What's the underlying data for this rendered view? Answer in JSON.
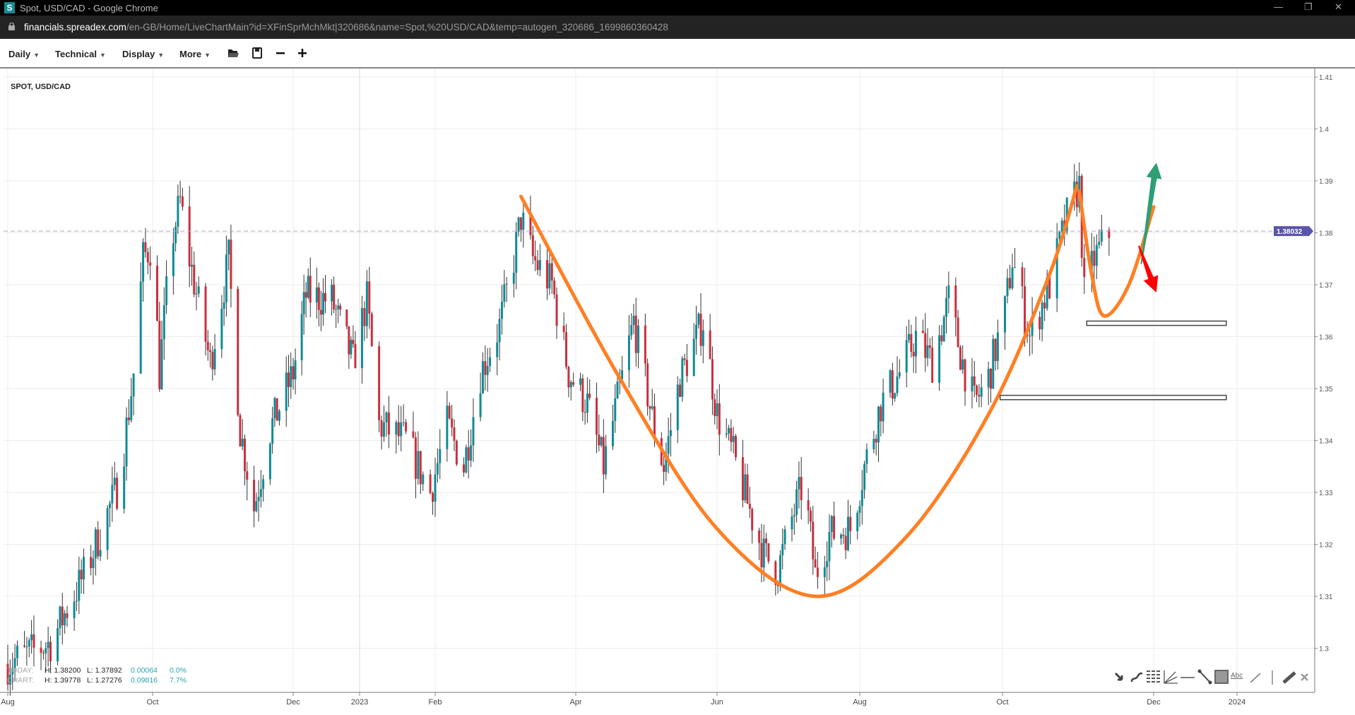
{
  "window": {
    "title": "Spot, USD/CAD - Google Chrome",
    "logo_letter": "S"
  },
  "address_bar": {
    "host": "financials.spreadex.com",
    "path": "/en-GB/Home/LiveChartMain?id=XFinSprMchMkt|320686&name=Spot,%20USD/CAD&temp=autogen_320686_1699860360428"
  },
  "toolbar": {
    "menus": [
      "Daily",
      "Technical",
      "Display",
      "More"
    ],
    "icons": [
      "open-folder-icon",
      "save-icon",
      "zoom-out-icon",
      "zoom-in-icon"
    ]
  },
  "chart_title": "SPOT, USD/CAD",
  "stats": {
    "today": {
      "label": "TODAY:",
      "high": "H: 1.38200",
      "low": "L: 1.37892",
      "change": "0.00064",
      "pct": "0.0%"
    },
    "chart": {
      "label": "CHART:",
      "high": "H: 1.39778",
      "low": "L: 1.27276",
      "change": "0.09816",
      "pct": "7.7%"
    }
  },
  "drawing_tools": [
    "arrow-icon",
    "curve-icon",
    "fibonacci-icon",
    "fan-icon",
    "horizontal-line-icon",
    "trend-line-icon",
    "rectangle-icon",
    "text-icon",
    "line-icon",
    "separator",
    "ruler-icon",
    "close-icon"
  ],
  "drawing_tools_text": "Abc",
  "colors": {
    "up": "#0f8b96",
    "down": "#c9303c",
    "annotation": "#ff7f24",
    "arrow_up": "#2e9e74",
    "arrow_down": "#ff0000",
    "price_badge": "#5b55a8"
  },
  "chart_data": {
    "type": "candlestick",
    "title": "SPOT, USD/CAD",
    "ylim": [
      1.295,
      1.412
    ],
    "y_ticks": [
      "1.3",
      "1.31",
      "1.32",
      "1.33",
      "1.34",
      "1.35",
      "1.36",
      "1.37",
      "1.38",
      "1.39",
      "1.4",
      "1.41"
    ],
    "x_ticks": [
      {
        "label": "Aug",
        "date": "2022-08-01"
      },
      {
        "label": "Oct",
        "date": "2022-10-01"
      },
      {
        "label": "Dec",
        "date": "2022-12-01"
      },
      {
        "label": "2023",
        "date": "2023-01-01"
      },
      {
        "label": "Feb",
        "date": "2023-02-01"
      },
      {
        "label": "Apr",
        "date": "2023-04-01"
      },
      {
        "label": "Jun",
        "date": "2023-06-01"
      },
      {
        "label": "Aug",
        "date": "2023-08-01"
      },
      {
        "label": "Oct",
        "date": "2023-10-01"
      },
      {
        "label": "Dec",
        "date": "2023-12-01"
      },
      {
        "label": "2024",
        "date": "2024-01-01"
      }
    ],
    "current_price": "1.38032",
    "price_path": [
      [
        "2022-08-01",
        1.297
      ],
      [
        "2022-08-05",
        1.298
      ],
      [
        "2022-08-19",
        1.301
      ],
      [
        "2022-09-03",
        1.315
      ],
      [
        "2022-09-17",
        1.332
      ],
      [
        "2022-09-23",
        1.353
      ],
      [
        "2022-09-27",
        1.375
      ],
      [
        "2022-10-01",
        1.378
      ],
      [
        "2022-10-04",
        1.353
      ],
      [
        "2022-10-09",
        1.378
      ],
      [
        "2022-10-13",
        1.386
      ],
      [
        "2022-10-17",
        1.375
      ],
      [
        "2022-10-26",
        1.355
      ],
      [
        "2022-11-03",
        1.375
      ],
      [
        "2022-11-08",
        1.342
      ],
      [
        "2022-11-14",
        1.327
      ],
      [
        "2022-11-21",
        1.342
      ],
      [
        "2022-12-01",
        1.353
      ],
      [
        "2022-12-07",
        1.368
      ],
      [
        "2022-12-19",
        1.367
      ],
      [
        "2022-12-29",
        1.355
      ],
      [
        "2023-01-04",
        1.367
      ],
      [
        "2023-01-09",
        1.343
      ],
      [
        "2023-01-20",
        1.34
      ],
      [
        "2023-01-30",
        1.33
      ],
      [
        "2023-02-06",
        1.343
      ],
      [
        "2023-02-13",
        1.335
      ],
      [
        "2023-02-20",
        1.353
      ],
      [
        "2023-02-28",
        1.362
      ],
      [
        "2023-03-06",
        1.375
      ],
      [
        "2023-03-09",
        1.383
      ],
      [
        "2023-03-14",
        1.375
      ],
      [
        "2023-03-22",
        1.37
      ],
      [
        "2023-03-29",
        1.353
      ],
      [
        "2023-04-06",
        1.347
      ],
      [
        "2023-04-13",
        1.335
      ],
      [
        "2023-04-21",
        1.352
      ],
      [
        "2023-04-26",
        1.363
      ],
      [
        "2023-05-05",
        1.342
      ],
      [
        "2023-05-09",
        1.335
      ],
      [
        "2023-05-16",
        1.352
      ],
      [
        "2023-05-26",
        1.363
      ],
      [
        "2023-06-01",
        1.345
      ],
      [
        "2023-06-08",
        1.337
      ],
      [
        "2023-06-16",
        1.325
      ],
      [
        "2023-06-21",
        1.318
      ],
      [
        "2023-06-27",
        1.315
      ],
      [
        "2023-07-03",
        1.325
      ],
      [
        "2023-07-08",
        1.332
      ],
      [
        "2023-07-13",
        1.314
      ],
      [
        "2023-07-19",
        1.322
      ],
      [
        "2023-07-28",
        1.323
      ],
      [
        "2023-08-03",
        1.335
      ],
      [
        "2023-08-10",
        1.347
      ],
      [
        "2023-08-18",
        1.353
      ],
      [
        "2023-08-25",
        1.36
      ],
      [
        "2023-09-01",
        1.355
      ],
      [
        "2023-09-08",
        1.367
      ],
      [
        "2023-09-14",
        1.355
      ],
      [
        "2023-09-19",
        1.347
      ],
      [
        "2023-09-25",
        1.352
      ],
      [
        "2023-10-02",
        1.365
      ],
      [
        "2023-10-05",
        1.375
      ],
      [
        "2023-10-12",
        1.36
      ],
      [
        "2023-10-20",
        1.37
      ],
      [
        "2023-10-28",
        1.385
      ],
      [
        "2023-11-01",
        1.389
      ],
      [
        "2023-11-03",
        1.368
      ],
      [
        "2023-11-07",
        1.375
      ],
      [
        "2023-11-13",
        1.38
      ]
    ],
    "annotations": {
      "curve_large": [
        [
          "2023-03-09",
          1.387
        ],
        [
          "2023-04-20",
          1.352
        ],
        [
          "2023-06-01",
          1.323
        ],
        [
          "2023-07-13",
          1.31
        ],
        [
          "2023-08-20",
          1.321
        ],
        [
          "2023-09-25",
          1.345
        ],
        [
          "2023-10-20",
          1.372
        ],
        [
          "2023-10-31",
          1.389
        ]
      ],
      "curve_small": [
        [
          "2023-11-01",
          1.388
        ],
        [
          "2023-11-06",
          1.372
        ],
        [
          "2023-11-11",
          1.364
        ],
        [
          "2023-11-21",
          1.37
        ],
        [
          "2023-12-01",
          1.385
        ]
      ],
      "arrow_up": {
        "from": [
          "2023-11-26",
          1.374
        ],
        "to": [
          "2023-12-02",
          1.3935
        ]
      },
      "arrow_down": {
        "from": [
          "2023-11-25",
          1.3775
        ],
        "to": [
          "2023-12-02",
          1.3685
        ]
      },
      "rectangles": [
        {
          "from": [
            "2023-11-04",
            1.363
          ],
          "to": [
            "2023-12-28",
            1.3623
          ]
        },
        {
          "from": [
            "2023-09-30",
            1.3487
          ],
          "to": [
            "2023-12-28",
            1.348
          ]
        }
      ]
    }
  }
}
